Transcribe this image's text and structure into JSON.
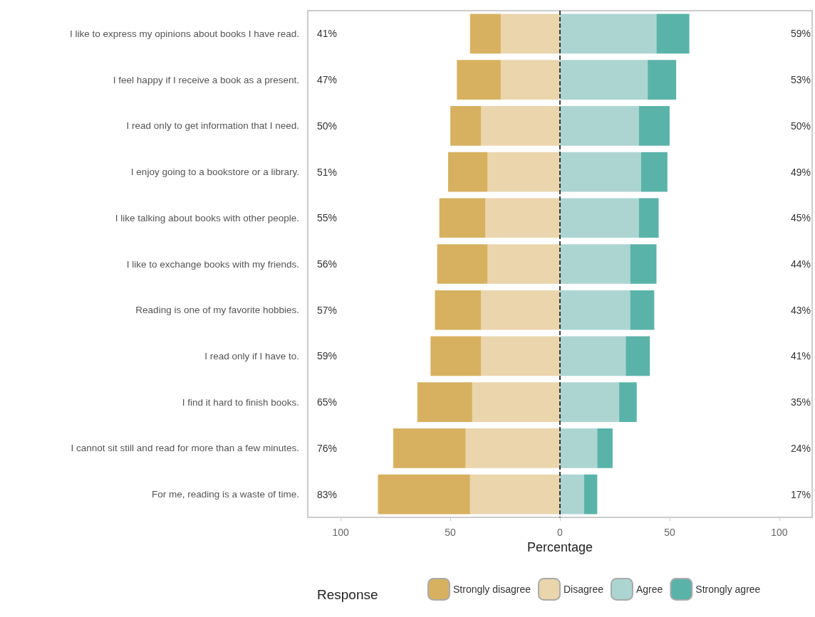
{
  "chart_data": {
    "type": "bar",
    "orientation": "horizontal",
    "stacked": true,
    "categories": [
      "I like to express my opinions about books I have read.",
      "I feel happy if I receive a book as a present.",
      "I read only to get information that I need.",
      "I enjoy going to a bookstore or a library.",
      "I like talking about books with other people.",
      "I like to exchange books with my friends.",
      "Reading is one of my favorite hobbies.",
      "I read only if I have to.",
      "I find it hard to finish books.",
      "I cannot sit still and read for more than a few minutes.",
      "For me, reading is a waste of time."
    ],
    "series": [
      {
        "name": "Disagree",
        "color": "#ead5ad",
        "values": [
          -27,
          -27,
          -36,
          -33,
          -34,
          -33,
          -36,
          -36,
          -40,
          -43,
          -41
        ]
      },
      {
        "name": "Strongly disagree",
        "color": "#d7b160",
        "values": [
          -14,
          -20,
          -14,
          -18,
          -21,
          -23,
          -21,
          -23,
          -25,
          -33,
          -42
        ]
      },
      {
        "name": "Agree",
        "color": "#acd5d2",
        "values": [
          44,
          40,
          36,
          37,
          36,
          32,
          32,
          30,
          27,
          17,
          11
        ]
      },
      {
        "name": "Strongly agree",
        "color": "#5ab3a9",
        "values": [
          15,
          13,
          14,
          12,
          9,
          12,
          11,
          11,
          8,
          7,
          6
        ]
      }
    ],
    "totals": [
      [
        "41%",
        "59%"
      ],
      [
        "47%",
        "53%"
      ],
      [
        "50%",
        "50%"
      ],
      [
        "51%",
        "49%"
      ],
      [
        "55%",
        "45%"
      ],
      [
        "56%",
        "44%"
      ],
      [
        "57%",
        "43%"
      ],
      [
        "59%",
        "41%"
      ],
      [
        "65%",
        "35%"
      ],
      [
        "76%",
        "24%"
      ],
      [
        "83%",
        "17%"
      ]
    ],
    "xlim": [
      -115,
      115
    ],
    "xticks": [
      {
        "value": -100,
        "label": "100"
      },
      {
        "value": -50,
        "label": "50"
      },
      0,
      50,
      100
    ],
    "xlabel": "Percentage",
    "legend_title": "Response",
    "legend": "bottom",
    "grid": false,
    "ref_lines": [
      {
        "axis": "x",
        "value": 0,
        "color": "#000000",
        "line_style": "dashed"
      }
    ]
  }
}
